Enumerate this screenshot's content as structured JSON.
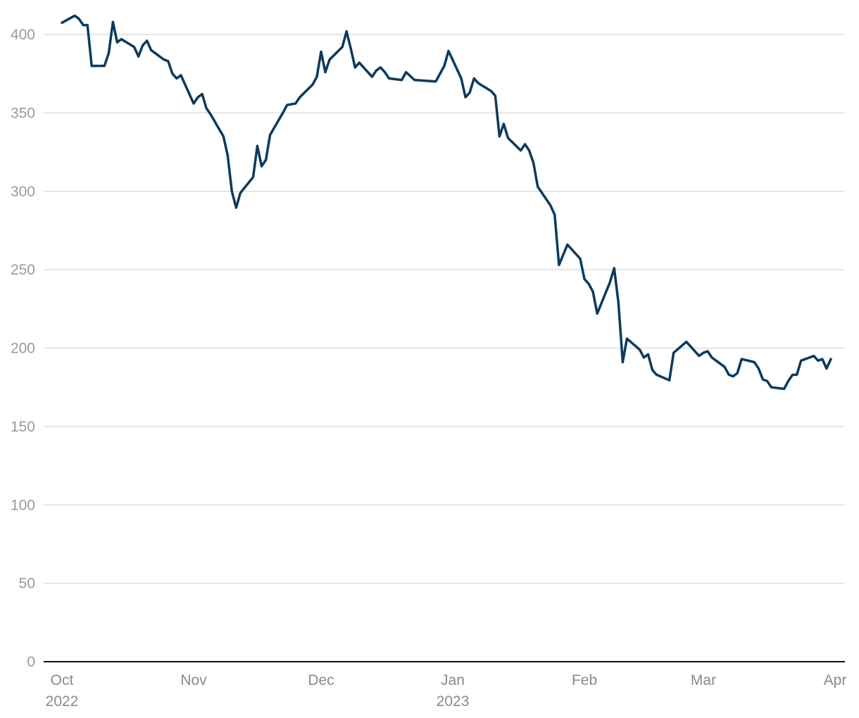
{
  "chart_data": {
    "type": "line",
    "title": "",
    "xlabel": "",
    "ylabel": "",
    "ylim": [
      0,
      400
    ],
    "y_ticks": [
      0,
      50,
      100,
      150,
      200,
      250,
      300,
      350,
      400
    ],
    "grid": "horizontal",
    "legend": "none",
    "x_ticks": [
      {
        "date": "2022-10-01",
        "label": "Oct",
        "sublabel": "2022"
      },
      {
        "date": "2022-11-01",
        "label": "Nov",
        "sublabel": ""
      },
      {
        "date": "2022-12-01",
        "label": "Dec",
        "sublabel": ""
      },
      {
        "date": "2023-01-01",
        "label": "Jan",
        "sublabel": "2023"
      },
      {
        "date": "2023-02-01",
        "label": "Feb",
        "sublabel": ""
      },
      {
        "date": "2023-03-01",
        "label": "Mar",
        "sublabel": ""
      },
      {
        "date": "2023-04-01",
        "label": "Apr",
        "sublabel": ""
      }
    ],
    "series": [
      {
        "color": "#0b3a5c",
        "points": [
          [
            "2022-10-01",
            407.5
          ],
          [
            "2022-10-04",
            412
          ],
          [
            "2022-10-05",
            410
          ],
          [
            "2022-10-06",
            406
          ],
          [
            "2022-10-07",
            406
          ],
          [
            "2022-10-08",
            380
          ],
          [
            "2022-10-11",
            380
          ],
          [
            "2022-10-12",
            388
          ],
          [
            "2022-10-13",
            408
          ],
          [
            "2022-10-14",
            395
          ],
          [
            "2022-10-15",
            397
          ],
          [
            "2022-10-18",
            392
          ],
          [
            "2022-10-19",
            386
          ],
          [
            "2022-10-20",
            393
          ],
          [
            "2022-10-21",
            396
          ],
          [
            "2022-10-22",
            390
          ],
          [
            "2022-10-25",
            384
          ],
          [
            "2022-10-26",
            383
          ],
          [
            "2022-10-27",
            375
          ],
          [
            "2022-10-28",
            372
          ],
          [
            "2022-10-29",
            374
          ],
          [
            "2022-11-01",
            356
          ],
          [
            "2022-11-02",
            360
          ],
          [
            "2022-11-03",
            362
          ],
          [
            "2022-11-04",
            353
          ],
          [
            "2022-11-05",
            349
          ],
          [
            "2022-11-08",
            335
          ],
          [
            "2022-11-09",
            323
          ],
          [
            "2022-11-10",
            300
          ],
          [
            "2022-11-11",
            289.5
          ],
          [
            "2022-11-12",
            299
          ],
          [
            "2022-11-15",
            309
          ],
          [
            "2022-11-16",
            329
          ],
          [
            "2022-11-17",
            316
          ],
          [
            "2022-11-18",
            320
          ],
          [
            "2022-11-19",
            336
          ],
          [
            "2022-11-22",
            350
          ],
          [
            "2022-11-23",
            355
          ],
          [
            "2022-11-25",
            356
          ],
          [
            "2022-11-26",
            360
          ],
          [
            "2022-11-29",
            368
          ],
          [
            "2022-11-30",
            373
          ],
          [
            "2022-12-01",
            389
          ],
          [
            "2022-12-02",
            376
          ],
          [
            "2022-12-03",
            384
          ],
          [
            "2022-12-06",
            392
          ],
          [
            "2022-12-07",
            402
          ],
          [
            "2022-12-08",
            391
          ],
          [
            "2022-12-09",
            379
          ],
          [
            "2022-12-10",
            382
          ],
          [
            "2022-12-13",
            373
          ],
          [
            "2022-12-14",
            377
          ],
          [
            "2022-12-15",
            379
          ],
          [
            "2022-12-16",
            376
          ],
          [
            "2022-12-17",
            372
          ],
          [
            "2022-12-20",
            371
          ],
          [
            "2022-12-21",
            376
          ],
          [
            "2022-12-23",
            371
          ],
          [
            "2022-12-28",
            370
          ],
          [
            "2022-12-30",
            380
          ],
          [
            "2022-12-31",
            389.5
          ],
          [
            "2023-01-03",
            372
          ],
          [
            "2023-01-04",
            360
          ],
          [
            "2023-01-05",
            363
          ],
          [
            "2023-01-06",
            372
          ],
          [
            "2023-01-07",
            369
          ],
          [
            "2023-01-10",
            364
          ],
          [
            "2023-01-11",
            361
          ],
          [
            "2023-01-12",
            335
          ],
          [
            "2023-01-13",
            343
          ],
          [
            "2023-01-14",
            334
          ],
          [
            "2023-01-17",
            326
          ],
          [
            "2023-01-18",
            330
          ],
          [
            "2023-01-19",
            326
          ],
          [
            "2023-01-20",
            318
          ],
          [
            "2023-01-21",
            303
          ],
          [
            "2023-01-24",
            291
          ],
          [
            "2023-01-25",
            285
          ],
          [
            "2023-01-26",
            253
          ],
          [
            "2023-01-28",
            266
          ],
          [
            "2023-01-31",
            257
          ],
          [
            "2023-02-01",
            244
          ],
          [
            "2023-02-02",
            241
          ],
          [
            "2023-02-03",
            236
          ],
          [
            "2023-02-04",
            222
          ],
          [
            "2023-02-07",
            242
          ],
          [
            "2023-02-08",
            251
          ],
          [
            "2023-02-09",
            229
          ],
          [
            "2023-02-10",
            191
          ],
          [
            "2023-02-11",
            206
          ],
          [
            "2023-02-14",
            199
          ],
          [
            "2023-02-15",
            194
          ],
          [
            "2023-02-16",
            196
          ],
          [
            "2023-02-17",
            186
          ],
          [
            "2023-02-18",
            183
          ],
          [
            "2023-02-21",
            179.5
          ],
          [
            "2023-02-22",
            197
          ],
          [
            "2023-02-25",
            204
          ],
          [
            "2023-02-28",
            195
          ],
          [
            "2023-03-01",
            197
          ],
          [
            "2023-03-02",
            198
          ],
          [
            "2023-03-03",
            194
          ],
          [
            "2023-03-06",
            188
          ],
          [
            "2023-03-07",
            183
          ],
          [
            "2023-03-08",
            182
          ],
          [
            "2023-03-09",
            184
          ],
          [
            "2023-03-10",
            193
          ],
          [
            "2023-03-13",
            191
          ],
          [
            "2023-03-14",
            187
          ],
          [
            "2023-03-15",
            180
          ],
          [
            "2023-03-16",
            179
          ],
          [
            "2023-03-17",
            175
          ],
          [
            "2023-03-20",
            174
          ],
          [
            "2023-03-21",
            179
          ],
          [
            "2023-03-22",
            183
          ],
          [
            "2023-03-23",
            183
          ],
          [
            "2023-03-24",
            192
          ],
          [
            "2023-03-27",
            195
          ],
          [
            "2023-03-28",
            192
          ],
          [
            "2023-03-29",
            193
          ],
          [
            "2023-03-30",
            187
          ],
          [
            "2023-03-31",
            193
          ]
        ]
      }
    ]
  }
}
